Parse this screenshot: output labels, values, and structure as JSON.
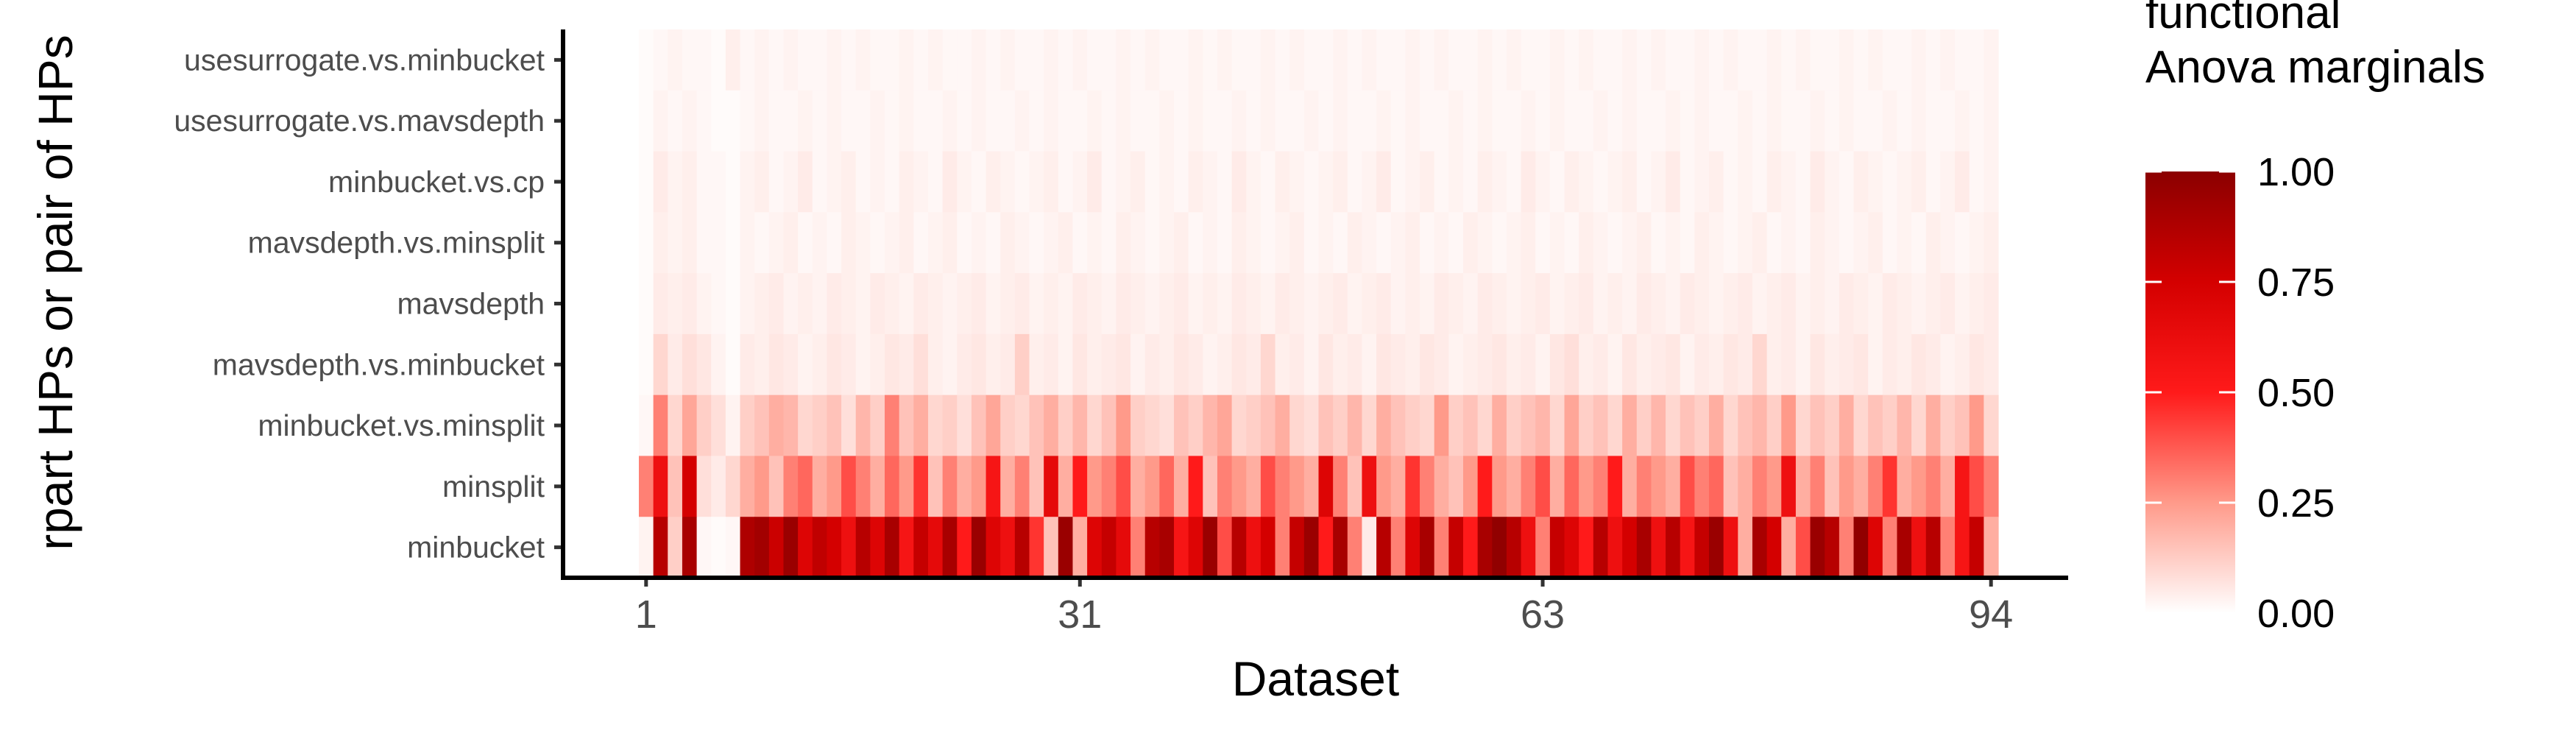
{
  "chart_data": {
    "type": "heatmap",
    "xlabel": "Dataset",
    "ylabel": "rpart HPs or pair of HPs",
    "x_tick_labels": [
      "1",
      "31",
      "63",
      "94"
    ],
    "x_tick_values": [
      1,
      31,
      63,
      94
    ],
    "n_datasets": 94,
    "rows": [
      "usesurrogate.vs.minbucket",
      "usesurrogate.vs.mavsdepth",
      "minbucket.vs.cp",
      "mavsdepth.vs.minsplit",
      "mavsdepth",
      "mavsdepth.vs.minbucket",
      "minbucket.vs.minsplit",
      "minsplit",
      "minbucket"
    ],
    "colorscale": {
      "title_lines": [
        "functional",
        "Anova marginals"
      ],
      "colors": [
        "#ffffff",
        "#ff9a8a",
        "#ff1a1a",
        "#d40000",
        "#8b0000"
      ],
      "range": [
        0,
        1
      ],
      "ticks": [
        "0.00",
        "0.25",
        "0.50",
        "0.75",
        "1.00"
      ]
    },
    "values": {
      "minbucket": [
        0.03,
        0.85,
        0.12,
        0.9,
        0.02,
        0.01,
        0.02,
        0.88,
        0.92,
        0.78,
        0.95,
        0.7,
        0.82,
        0.75,
        0.6,
        0.85,
        0.7,
        0.9,
        0.55,
        0.8,
        0.65,
        0.9,
        0.5,
        0.95,
        0.7,
        0.6,
        0.85,
        0.45,
        0.15,
        0.95,
        0.2,
        0.7,
        0.8,
        0.65,
        0.3,
        0.85,
        0.9,
        0.55,
        0.7,
        0.95,
        0.4,
        0.85,
        0.6,
        0.75,
        0.3,
        0.8,
        0.95,
        0.5,
        0.9,
        0.3,
        0.05,
        0.85,
        0.3,
        0.7,
        0.9,
        0.3,
        0.8,
        0.5,
        0.9,
        0.98,
        0.85,
        0.6,
        0.3,
        0.8,
        0.7,
        0.5,
        0.85,
        0.6,
        0.75,
        0.9,
        0.6,
        0.85,
        0.55,
        0.8,
        0.95,
        0.6,
        0.2,
        0.9,
        0.75,
        0.2,
        0.4,
        0.95,
        0.85,
        0.3,
        0.98,
        0.7,
        0.3,
        0.9,
        0.6,
        0.85,
        0.3,
        0.55,
        0.8,
        0.2
      ],
      "minsplit": [
        0.3,
        0.6,
        0.15,
        0.75,
        0.08,
        0.05,
        0.1,
        0.2,
        0.25,
        0.15,
        0.3,
        0.35,
        0.2,
        0.25,
        0.4,
        0.3,
        0.2,
        0.35,
        0.25,
        0.45,
        0.15,
        0.3,
        0.2,
        0.25,
        0.55,
        0.2,
        0.3,
        0.15,
        0.65,
        0.2,
        0.5,
        0.25,
        0.3,
        0.4,
        0.2,
        0.25,
        0.35,
        0.2,
        0.5,
        0.15,
        0.3,
        0.25,
        0.2,
        0.4,
        0.3,
        0.25,
        0.2,
        0.7,
        0.3,
        0.15,
        0.6,
        0.25,
        0.2,
        0.45,
        0.3,
        0.2,
        0.15,
        0.25,
        0.5,
        0.25,
        0.2,
        0.3,
        0.4,
        0.2,
        0.35,
        0.25,
        0.3,
        0.5,
        0.2,
        0.3,
        0.25,
        0.2,
        0.4,
        0.3,
        0.35,
        0.15,
        0.2,
        0.3,
        0.25,
        0.6,
        0.2,
        0.3,
        0.15,
        0.25,
        0.2,
        0.3,
        0.45,
        0.2,
        0.25,
        0.3,
        0.2,
        0.55,
        0.4,
        0.3
      ],
      "minbucket.vs.minsplit": [
        0.02,
        0.3,
        0.1,
        0.22,
        0.12,
        0.08,
        0.03,
        0.12,
        0.15,
        0.2,
        0.18,
        0.1,
        0.12,
        0.15,
        0.08,
        0.18,
        0.12,
        0.3,
        0.15,
        0.2,
        0.1,
        0.12,
        0.08,
        0.15,
        0.22,
        0.12,
        0.1,
        0.15,
        0.2,
        0.12,
        0.18,
        0.1,
        0.15,
        0.25,
        0.12,
        0.1,
        0.08,
        0.15,
        0.12,
        0.18,
        0.22,
        0.1,
        0.12,
        0.15,
        0.2,
        0.1,
        0.08,
        0.15,
        0.12,
        0.18,
        0.1,
        0.2,
        0.15,
        0.12,
        0.1,
        0.25,
        0.12,
        0.15,
        0.1,
        0.2,
        0.12,
        0.15,
        0.18,
        0.1,
        0.22,
        0.12,
        0.15,
        0.1,
        0.2,
        0.12,
        0.18,
        0.1,
        0.15,
        0.12,
        0.2,
        0.1,
        0.15,
        0.18,
        0.12,
        0.25,
        0.1,
        0.15,
        0.12,
        0.2,
        0.1,
        0.15,
        0.12,
        0.18,
        0.1,
        0.2,
        0.12,
        0.15,
        0.25,
        0.1
      ],
      "mavsdepth.vs.minbucket": [
        0.01,
        0.1,
        0.05,
        0.08,
        0.06,
        0.03,
        0.01,
        0.05,
        0.04,
        0.06,
        0.05,
        0.03,
        0.04,
        0.06,
        0.05,
        0.03,
        0.04,
        0.06,
        0.05,
        0.08,
        0.04,
        0.03,
        0.05,
        0.06,
        0.04,
        0.05,
        0.12,
        0.04,
        0.05,
        0.03,
        0.06,
        0.04,
        0.05,
        0.06,
        0.03,
        0.05,
        0.04,
        0.06,
        0.05,
        0.03,
        0.04,
        0.06,
        0.05,
        0.1,
        0.04,
        0.05,
        0.03,
        0.06,
        0.04,
        0.05,
        0.03,
        0.06,
        0.05,
        0.04,
        0.06,
        0.05,
        0.03,
        0.04,
        0.05,
        0.06,
        0.04,
        0.05,
        0.03,
        0.06,
        0.08,
        0.04,
        0.05,
        0.03,
        0.06,
        0.04,
        0.05,
        0.06,
        0.03,
        0.05,
        0.04,
        0.06,
        0.05,
        0.1,
        0.04,
        0.05,
        0.03,
        0.06,
        0.04,
        0.05,
        0.06,
        0.03,
        0.05,
        0.04,
        0.06,
        0.05,
        0.03,
        0.04,
        0.06,
        0.05
      ],
      "mavsdepth": [
        0.01,
        0.05,
        0.04,
        0.05,
        0.03,
        0.02,
        0.01,
        0.03,
        0.04,
        0.05,
        0.03,
        0.04,
        0.03,
        0.05,
        0.04,
        0.03,
        0.05,
        0.04,
        0.03,
        0.05,
        0.04,
        0.03,
        0.04,
        0.05,
        0.03,
        0.04,
        0.05,
        0.03,
        0.04,
        0.03,
        0.05,
        0.04,
        0.03,
        0.05,
        0.04,
        0.03,
        0.04,
        0.05,
        0.03,
        0.04,
        0.03,
        0.05,
        0.04,
        0.03,
        0.05,
        0.04,
        0.03,
        0.04,
        0.05,
        0.03,
        0.04,
        0.05,
        0.03,
        0.04,
        0.03,
        0.05,
        0.04,
        0.03,
        0.05,
        0.04,
        0.03,
        0.04,
        0.05,
        0.03,
        0.04,
        0.05,
        0.03,
        0.04,
        0.03,
        0.05,
        0.04,
        0.03,
        0.05,
        0.04,
        0.03,
        0.04,
        0.05,
        0.03,
        0.04,
        0.05,
        0.03,
        0.04,
        0.03,
        0.05,
        0.04,
        0.03,
        0.05,
        0.04,
        0.03,
        0.04,
        0.05,
        0.03,
        0.04,
        0.05
      ],
      "mavsdepth.vs.minsplit": [
        0.01,
        0.04,
        0.03,
        0.04,
        0.02,
        0.02,
        0.01,
        0.03,
        0.02,
        0.03,
        0.04,
        0.02,
        0.03,
        0.02,
        0.04,
        0.03,
        0.02,
        0.03,
        0.04,
        0.02,
        0.03,
        0.04,
        0.02,
        0.03,
        0.02,
        0.04,
        0.03,
        0.02,
        0.03,
        0.04,
        0.02,
        0.03,
        0.02,
        0.04,
        0.03,
        0.02,
        0.03,
        0.04,
        0.02,
        0.03,
        0.02,
        0.04,
        0.03,
        0.02,
        0.03,
        0.04,
        0.02,
        0.03,
        0.02,
        0.04,
        0.03,
        0.02,
        0.03,
        0.04,
        0.02,
        0.03,
        0.02,
        0.04,
        0.03,
        0.02,
        0.03,
        0.04,
        0.02,
        0.03,
        0.02,
        0.04,
        0.03,
        0.02,
        0.03,
        0.04,
        0.02,
        0.03,
        0.02,
        0.04,
        0.03,
        0.02,
        0.03,
        0.04,
        0.02,
        0.03,
        0.02,
        0.04,
        0.03,
        0.02,
        0.03,
        0.04,
        0.02,
        0.03,
        0.02,
        0.04,
        0.03,
        0.02,
        0.03,
        0.04
      ],
      "minbucket.vs.cp": [
        0.01,
        0.05,
        0.03,
        0.04,
        0.02,
        0.02,
        0.01,
        0.03,
        0.04,
        0.02,
        0.03,
        0.05,
        0.02,
        0.03,
        0.04,
        0.02,
        0.03,
        0.02,
        0.04,
        0.03,
        0.02,
        0.05,
        0.03,
        0.02,
        0.04,
        0.03,
        0.02,
        0.03,
        0.04,
        0.02,
        0.03,
        0.05,
        0.02,
        0.03,
        0.04,
        0.02,
        0.03,
        0.02,
        0.04,
        0.03,
        0.02,
        0.05,
        0.03,
        0.02,
        0.04,
        0.03,
        0.02,
        0.03,
        0.04,
        0.02,
        0.03,
        0.05,
        0.02,
        0.03,
        0.04,
        0.02,
        0.03,
        0.02,
        0.04,
        0.03,
        0.02,
        0.05,
        0.03,
        0.02,
        0.04,
        0.03,
        0.02,
        0.03,
        0.04,
        0.02,
        0.03,
        0.05,
        0.02,
        0.03,
        0.04,
        0.02,
        0.03,
        0.02,
        0.04,
        0.03,
        0.02,
        0.05,
        0.03,
        0.02,
        0.04,
        0.03,
        0.02,
        0.03,
        0.04,
        0.02,
        0.03,
        0.05,
        0.02,
        0.03
      ],
      "usesurrogate.vs.mavsdepth": [
        0.01,
        0.03,
        0.02,
        0.03,
        0.02,
        0.01,
        0.01,
        0.02,
        0.03,
        0.02,
        0.02,
        0.03,
        0.02,
        0.03,
        0.02,
        0.02,
        0.03,
        0.02,
        0.03,
        0.02,
        0.02,
        0.03,
        0.02,
        0.03,
        0.02,
        0.02,
        0.03,
        0.02,
        0.03,
        0.02,
        0.02,
        0.03,
        0.02,
        0.03,
        0.02,
        0.02,
        0.03,
        0.02,
        0.03,
        0.02,
        0.02,
        0.03,
        0.02,
        0.03,
        0.02,
        0.02,
        0.03,
        0.02,
        0.03,
        0.02,
        0.02,
        0.03,
        0.02,
        0.03,
        0.02,
        0.02,
        0.03,
        0.02,
        0.03,
        0.02,
        0.02,
        0.03,
        0.02,
        0.03,
        0.02,
        0.02,
        0.03,
        0.02,
        0.03,
        0.02,
        0.02,
        0.03,
        0.02,
        0.03,
        0.02,
        0.02,
        0.03,
        0.02,
        0.03,
        0.02,
        0.02,
        0.03,
        0.02,
        0.03,
        0.02,
        0.02,
        0.03,
        0.02,
        0.03,
        0.02,
        0.02,
        0.03,
        0.02,
        0.03
      ],
      "usesurrogate.vs.minbucket": [
        0.01,
        0.02,
        0.03,
        0.02,
        0.02,
        0.01,
        0.04,
        0.02,
        0.03,
        0.02,
        0.03,
        0.02,
        0.02,
        0.03,
        0.02,
        0.03,
        0.02,
        0.02,
        0.03,
        0.02,
        0.03,
        0.02,
        0.02,
        0.03,
        0.02,
        0.03,
        0.02,
        0.02,
        0.03,
        0.02,
        0.03,
        0.02,
        0.02,
        0.03,
        0.02,
        0.03,
        0.02,
        0.02,
        0.03,
        0.02,
        0.03,
        0.02,
        0.02,
        0.03,
        0.02,
        0.03,
        0.02,
        0.02,
        0.03,
        0.02,
        0.03,
        0.02,
        0.02,
        0.03,
        0.02,
        0.03,
        0.02,
        0.02,
        0.03,
        0.02,
        0.03,
        0.02,
        0.02,
        0.03,
        0.02,
        0.03,
        0.02,
        0.02,
        0.03,
        0.02,
        0.03,
        0.02,
        0.02,
        0.03,
        0.02,
        0.03,
        0.02,
        0.02,
        0.03,
        0.02,
        0.03,
        0.02,
        0.02,
        0.03,
        0.02,
        0.03,
        0.02,
        0.02,
        0.03,
        0.02,
        0.03,
        0.02,
        0.02,
        0.03
      ]
    }
  }
}
